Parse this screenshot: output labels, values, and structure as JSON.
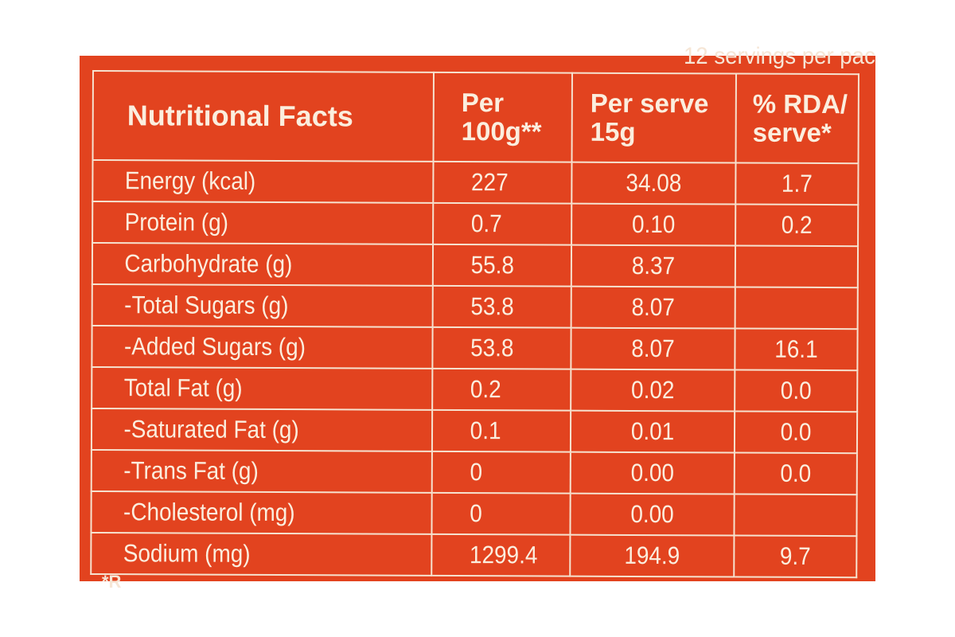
{
  "label": {
    "top_note": "12 servings per pac",
    "footnote": "*R",
    "colors": {
      "background": "#e2431f",
      "text": "#fbeede",
      "rule": "#f6e2cf"
    },
    "headers": {
      "nutrient": "Nutritional Facts",
      "per_100g": "Per 100g**",
      "per_serve": "Per serve 15g",
      "rda": "% RDA/ serve*"
    },
    "rows": [
      {
        "nutrient": "Energy (kcal)",
        "per_100g": "227",
        "per_serve": "34.08",
        "rda": "1.7"
      },
      {
        "nutrient": "Protein (g)",
        "per_100g": "0.7",
        "per_serve": "0.10",
        "rda": "0.2"
      },
      {
        "nutrient": "Carbohydrate (g)",
        "per_100g": "55.8",
        "per_serve": "8.37",
        "rda": ""
      },
      {
        "nutrient": "-Total Sugars (g)",
        "per_100g": "53.8",
        "per_serve": "8.07",
        "rda": ""
      },
      {
        "nutrient": "-Added Sugars (g)",
        "per_100g": "53.8",
        "per_serve": "8.07",
        "rda": "16.1"
      },
      {
        "nutrient": "Total Fat (g)",
        "per_100g": "0.2",
        "per_serve": "0.02",
        "rda": "0.0"
      },
      {
        "nutrient": "-Saturated Fat (g)",
        "per_100g": "0.1",
        "per_serve": "0.01",
        "rda": "0.0"
      },
      {
        "nutrient": "-Trans Fat (g)",
        "per_100g": "0",
        "per_serve": "0.00",
        "rda": "0.0"
      },
      {
        "nutrient": "-Cholesterol (mg)",
        "per_100g": "0",
        "per_serve": "0.00",
        "rda": ""
      },
      {
        "nutrient": "Sodium (mg)",
        "per_100g": "1299.4",
        "per_serve": "194.9",
        "rda": "9.7"
      }
    ]
  }
}
